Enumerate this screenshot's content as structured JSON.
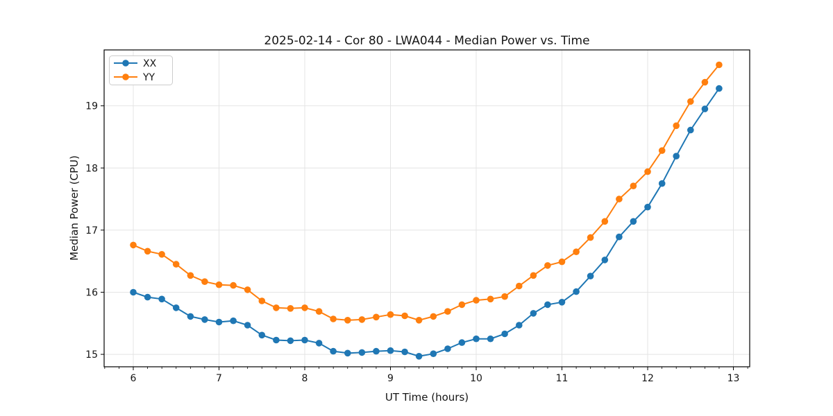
{
  "figure": {
    "background_color": "#ffffff",
    "text_color": "#151515",
    "grid_color": "#e4e4e4"
  },
  "chart_data": {
    "type": "line",
    "title": "2025-02-14 - Cor 80 - LWA044 - Median Power vs. Time",
    "xlabel": "UT Time (hours)",
    "ylabel": "Median Power (CPU)",
    "xlim": [
      5.66,
      13.19
    ],
    "ylim": [
      14.8,
      19.9
    ],
    "x_ticks": [
      6,
      7,
      8,
      9,
      10,
      11,
      12,
      13
    ],
    "y_ticks": [
      15,
      16,
      17,
      18,
      19
    ],
    "x_minor_step": 0.166667,
    "grid": true,
    "legend_position": "upper-left",
    "marker": "circle",
    "x": [
      6.0,
      6.167,
      6.333,
      6.5,
      6.667,
      6.833,
      7.0,
      7.167,
      7.333,
      7.5,
      7.667,
      7.833,
      8.0,
      8.167,
      8.333,
      8.5,
      8.667,
      8.833,
      9.0,
      9.167,
      9.333,
      9.5,
      9.667,
      9.833,
      10.0,
      10.167,
      10.333,
      10.5,
      10.667,
      10.833,
      11.0,
      11.167,
      11.333,
      11.5,
      11.667,
      11.833,
      12.0,
      12.167,
      12.333,
      12.5,
      12.667,
      12.833
    ],
    "series": [
      {
        "name": "XX",
        "color": "#1f77b4",
        "values": [
          16.0,
          15.92,
          15.89,
          15.75,
          15.61,
          15.56,
          15.52,
          15.54,
          15.47,
          15.31,
          15.23,
          15.22,
          15.23,
          15.18,
          15.05,
          15.02,
          15.03,
          15.05,
          15.06,
          15.04,
          14.97,
          15.01,
          15.09,
          15.19,
          15.25,
          15.25,
          15.33,
          15.47,
          15.66,
          15.8,
          15.84,
          16.01,
          16.26,
          16.52,
          16.89,
          17.14,
          17.37,
          17.75,
          18.19,
          18.61,
          18.95,
          19.28
        ]
      },
      {
        "name": "YY",
        "color": "#ff7f0e",
        "values": [
          16.76,
          16.66,
          16.61,
          16.45,
          16.27,
          16.17,
          16.12,
          16.11,
          16.04,
          15.86,
          15.75,
          15.74,
          15.75,
          15.69,
          15.57,
          15.55,
          15.56,
          15.6,
          15.64,
          15.62,
          15.55,
          15.61,
          15.69,
          15.8,
          15.87,
          15.89,
          15.93,
          16.1,
          16.27,
          16.43,
          16.49,
          16.65,
          16.88,
          17.14,
          17.5,
          17.71,
          17.94,
          18.28,
          18.68,
          19.07,
          19.38,
          19.66
        ]
      }
    ]
  }
}
